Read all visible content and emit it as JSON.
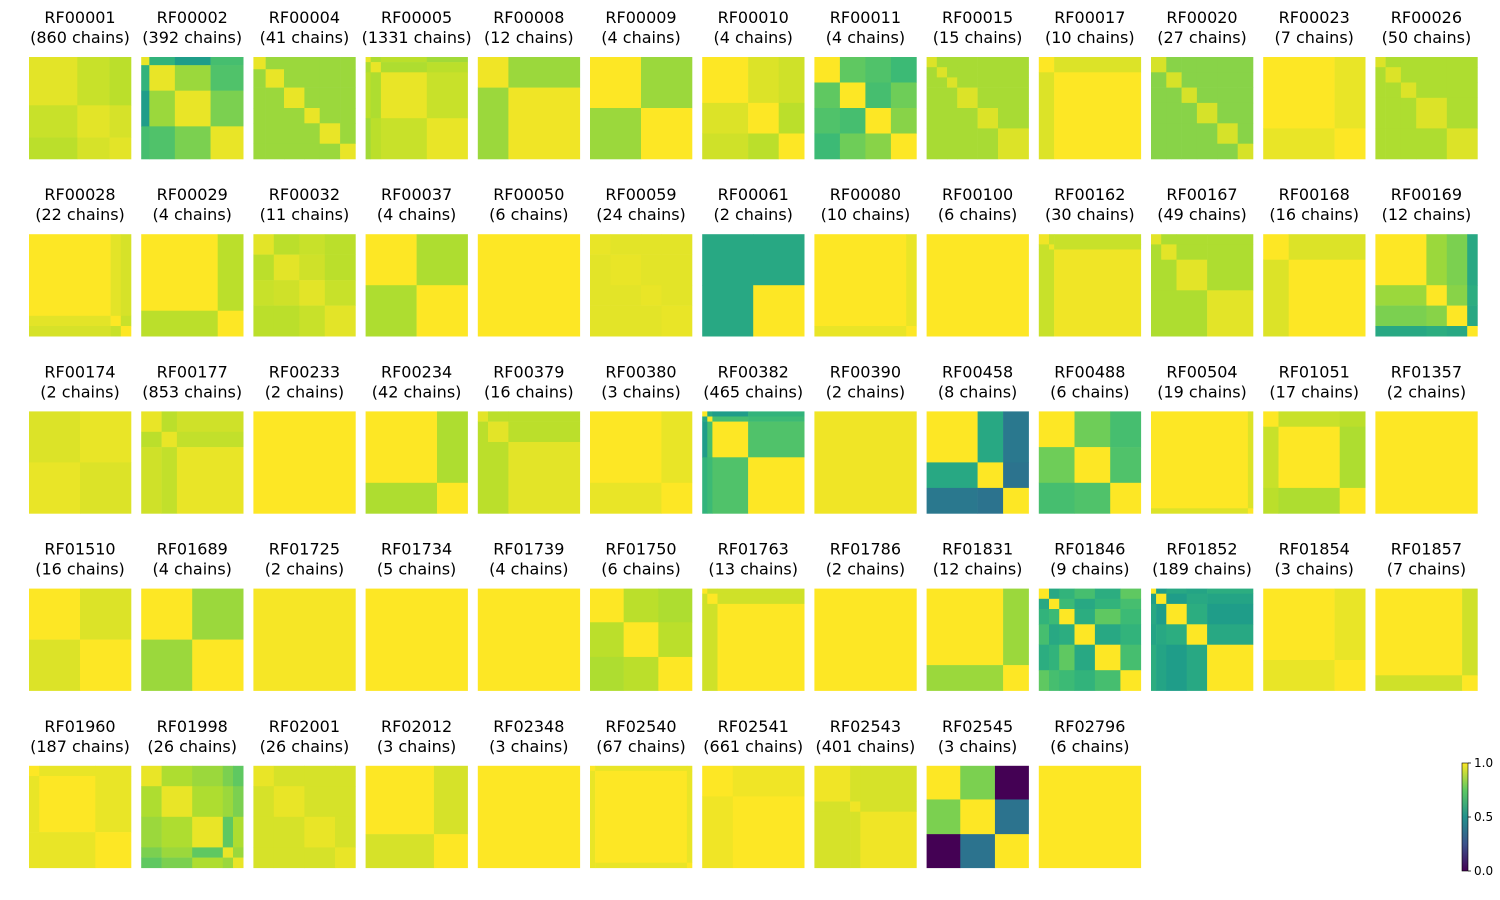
{
  "chart_data": {
    "type": "heatmap",
    "title": "",
    "colormap": "viridis",
    "colorbar": {
      "min": 0.0,
      "max": 1.0,
      "ticks": [
        0.0,
        0.5,
        1.0
      ],
      "tick_labels": [
        "0.0",
        "0.5",
        "1.0"
      ]
    },
    "panels": [
      {
        "family": "RF00001",
        "chains": "(860 chains)",
        "blocks": [
          0.45,
          0.3,
          0.2
        ],
        "off": [
          0.92,
          0.9,
          0.94
        ],
        "tint": 0.96
      },
      {
        "family": "RF00002",
        "chains": "(392 chains)",
        "blocks": [
          0.08,
          0.25,
          0.35,
          0.32
        ],
        "off": [
          0.65,
          0.55,
          0.7,
          0.85,
          0.72,
          0.8
        ],
        "tint": 0.97
      },
      {
        "family": "RF00004",
        "chains": "(41 chains)",
        "blocks": [
          0.12,
          0.18,
          0.2,
          0.15,
          0.2,
          0.15
        ],
        "off": [
          0.85
        ],
        "tint": 0.97
      },
      {
        "family": "RF00005",
        "chains": "(1331 chains)",
        "blocks": [
          0.05,
          0.1,
          0.45,
          0.4
        ],
        "off": [
          0.88,
          0.9,
          0.86,
          0.88,
          0.9,
          0.92
        ],
        "tint": 0.97
      },
      {
        "family": "RF00008",
        "chains": "(12 chains)",
        "blocks": [
          0.3,
          0.7
        ],
        "off": [
          0.85
        ],
        "tint": 0.98
      },
      {
        "family": "RF00009",
        "chains": "(4 chains)",
        "blocks": [
          0.5,
          0.5
        ],
        "off": [
          0.85
        ],
        "tint": 1.0
      },
      {
        "family": "RF00010",
        "chains": "(4 chains)",
        "blocks": [
          0.45,
          0.3,
          0.25
        ],
        "off": [
          0.95,
          0.93,
          0.9
        ],
        "tint": 1.0
      },
      {
        "family": "RF00011",
        "chains": "(4 chains)",
        "blocks": [
          0.25,
          0.25,
          0.25,
          0.25
        ],
        "off": [
          0.75,
          0.72,
          0.68,
          0.7,
          0.78,
          0.82
        ],
        "tint": 1.0
      },
      {
        "family": "RF00015",
        "chains": "(15 chains)",
        "blocks": [
          0.1,
          0.1,
          0.1,
          0.2,
          0.2,
          0.3
        ],
        "off": [
          0.87
        ],
        "tint": 0.95
      },
      {
        "family": "RF00017",
        "chains": "(10 chains)",
        "blocks": [
          0.15,
          0.85
        ],
        "off": [
          0.95
        ],
        "tint": 1.0
      },
      {
        "family": "RF00020",
        "chains": "(27 chains)",
        "blocks": [
          0.15,
          0.15,
          0.15,
          0.2,
          0.2,
          0.15
        ],
        "off": [
          0.82
        ],
        "tint": 0.94
      },
      {
        "family": "RF00023",
        "chains": "(7 chains)",
        "blocks": [
          0.7,
          0.3
        ],
        "off": [
          0.97
        ],
        "tint": 1.0
      },
      {
        "family": "RF00026",
        "chains": "(50 chains)",
        "blocks": [
          0.1,
          0.15,
          0.15,
          0.3,
          0.3
        ],
        "off": [
          0.88
        ],
        "tint": 0.95
      },
      {
        "family": "RF00028",
        "chains": "(22 chains)",
        "blocks": [
          0.8,
          0.1,
          0.1
        ],
        "off": [
          0.96,
          0.94,
          0.92
        ],
        "tint": 1.0
      },
      {
        "family": "RF00029",
        "chains": "(4 chains)",
        "blocks": [
          0.75,
          0.25
        ],
        "off": [
          0.9
        ],
        "tint": 1.0
      },
      {
        "family": "RF00032",
        "chains": "(11 chains)",
        "blocks": [
          0.2,
          0.25,
          0.25,
          0.3
        ],
        "off": [
          0.9,
          0.92,
          0.9,
          0.93,
          0.9,
          0.92
        ],
        "tint": 0.96
      },
      {
        "family": "RF00037",
        "chains": "(4 chains)",
        "blocks": [
          0.5,
          0.5
        ],
        "off": [
          0.88
        ],
        "tint": 1.0
      },
      {
        "family": "RF00050",
        "chains": "(6 chains)",
        "blocks": [
          1.0
        ],
        "off": [
          1.0
        ],
        "tint": 1.0
      },
      {
        "family": "RF00059",
        "chains": "(24 chains)",
        "blocks": [
          0.2,
          0.3,
          0.2,
          0.3
        ],
        "off": [
          0.96
        ],
        "tint": 0.97
      },
      {
        "family": "RF00061",
        "chains": "(2 chains)",
        "blocks": [
          0.5,
          0.5
        ],
        "off": [
          0.6
        ],
        "tint": 1.0,
        "first": 0.6
      },
      {
        "family": "RF00080",
        "chains": "(10 chains)",
        "blocks": [
          0.9,
          0.1
        ],
        "off": [
          0.97
        ],
        "tint": 1.0
      },
      {
        "family": "RF00100",
        "chains": "(6 chains)",
        "blocks": [
          1.0
        ],
        "off": [
          1.0
        ],
        "tint": 1.0
      },
      {
        "family": "RF00162",
        "chains": "(30 chains)",
        "blocks": [
          0.1,
          0.05,
          0.85
        ],
        "off": [
          0.92
        ],
        "tint": 0.98
      },
      {
        "family": "RF00167",
        "chains": "(49 chains)",
        "blocks": [
          0.1,
          0.15,
          0.3,
          0.45
        ],
        "off": [
          0.88
        ],
        "tint": 0.96
      },
      {
        "family": "RF00168",
        "chains": "(16 chains)",
        "blocks": [
          0.25,
          0.75
        ],
        "off": [
          0.95
        ],
        "tint": 1.0
      },
      {
        "family": "RF00169",
        "chains": "(12 chains)",
        "blocks": [
          0.5,
          0.2,
          0.2,
          0.1
        ],
        "off": [
          0.85,
          0.8,
          0.6,
          0.82,
          0.62,
          0.6
        ],
        "tint": 1.0
      },
      {
        "family": "RF00174",
        "chains": "(2 chains)",
        "blocks": [
          0.5,
          0.5
        ],
        "off": [
          0.97
        ],
        "tint": 0.95
      },
      {
        "family": "RF00177",
        "chains": "(853 chains)",
        "blocks": [
          0.2,
          0.15,
          0.65
        ],
        "off": [
          0.9,
          0.93,
          0.91
        ],
        "tint": 0.97
      },
      {
        "family": "RF00233",
        "chains": "(2 chains)",
        "blocks": [
          1.0
        ],
        "off": [
          1.0
        ],
        "tint": 1.0
      },
      {
        "family": "RF00234",
        "chains": "(42 chains)",
        "blocks": [
          0.7,
          0.3
        ],
        "off": [
          0.88
        ],
        "tint": 1.0
      },
      {
        "family": "RF00379",
        "chains": "(16 chains)",
        "blocks": [
          0.1,
          0.2,
          0.7
        ],
        "off": [
          0.9
        ],
        "tint": 0.96
      },
      {
        "family": "RF00380",
        "chains": "(3 chains)",
        "blocks": [
          0.7,
          0.3
        ],
        "off": [
          0.97
        ],
        "tint": 1.0
      },
      {
        "family": "RF00382",
        "chains": "(465 chains)",
        "blocks": [
          0.05,
          0.05,
          0.35,
          0.55
        ],
        "off": [
          0.6,
          0.55,
          0.65,
          0.7,
          0.68,
          0.72
        ],
        "tint": 1.0
      },
      {
        "family": "RF00390",
        "chains": "(2 chains)",
        "blocks": [
          1.0
        ],
        "off": [
          1.0
        ],
        "tint": 0.98
      },
      {
        "family": "RF00458",
        "chains": "(8 chains)",
        "blocks": [
          0.5,
          0.25,
          0.25
        ],
        "off": [
          0.6,
          0.4,
          0.38
        ],
        "tint": 1.0
      },
      {
        "family": "RF00488",
        "chains": "(6 chains)",
        "blocks": [
          0.35,
          0.35,
          0.3
        ],
        "off": [
          0.78,
          0.7,
          0.72
        ],
        "tint": 1.0
      },
      {
        "family": "RF00504",
        "chains": "(19 chains)",
        "blocks": [
          0.95,
          0.05
        ],
        "off": [
          0.95
        ],
        "tint": 1.0
      },
      {
        "family": "RF01051",
        "chains": "(17 chains)",
        "blocks": [
          0.15,
          0.6,
          0.25
        ],
        "off": [
          0.92,
          0.9,
          0.88
        ],
        "tint": 1.0
      },
      {
        "family": "RF01357",
        "chains": "(2 chains)",
        "blocks": [
          1.0
        ],
        "off": [
          1.0
        ],
        "tint": 1.0
      },
      {
        "family": "RF01510",
        "chains": "(16 chains)",
        "blocks": [
          0.5,
          0.5
        ],
        "off": [
          0.95
        ],
        "tint": 1.0
      },
      {
        "family": "RF01689",
        "chains": "(4 chains)",
        "blocks": [
          0.5,
          0.5
        ],
        "off": [
          0.85
        ],
        "tint": 1.0
      },
      {
        "family": "RF01725",
        "chains": "(2 chains)",
        "blocks": [
          1.0
        ],
        "off": [
          1.0
        ],
        "tint": 0.99
      },
      {
        "family": "RF01734",
        "chains": "(5 chains)",
        "blocks": [
          1.0
        ],
        "off": [
          1.0
        ],
        "tint": 1.0
      },
      {
        "family": "RF01739",
        "chains": "(4 chains)",
        "blocks": [
          1.0
        ],
        "off": [
          1.0
        ],
        "tint": 1.0
      },
      {
        "family": "RF01750",
        "chains": "(6 chains)",
        "blocks": [
          0.33,
          0.34,
          0.33
        ],
        "off": [
          0.9,
          0.88,
          0.9
        ],
        "tint": 1.0
      },
      {
        "family": "RF01763",
        "chains": "(13 chains)",
        "blocks": [
          0.05,
          0.1,
          0.85
        ],
        "off": [
          0.93
        ],
        "tint": 1.0
      },
      {
        "family": "RF01786",
        "chains": "(2 chains)",
        "blocks": [
          1.0
        ],
        "off": [
          1.0
        ],
        "tint": 1.0
      },
      {
        "family": "RF01831",
        "chains": "(12 chains)",
        "blocks": [
          0.75,
          0.25
        ],
        "off": [
          0.85
        ],
        "tint": 1.0
      },
      {
        "family": "RF01846",
        "chains": "(9 chains)",
        "blocks": [
          0.1,
          0.1,
          0.15,
          0.2,
          0.25,
          0.2
        ],
        "off": [
          0.6,
          0.65,
          0.7,
          0.62,
          0.75,
          0.68
        ],
        "tint": 1.0
      },
      {
        "family": "RF01852",
        "chains": "(189 chains)",
        "blocks": [
          0.05,
          0.1,
          0.2,
          0.2,
          0.45
        ],
        "off": [
          0.55,
          0.6,
          0.58,
          0.62
        ],
        "tint": 1.0
      },
      {
        "family": "RF01854",
        "chains": "(3 chains)",
        "blocks": [
          0.7,
          0.3
        ],
        "off": [
          0.97
        ],
        "tint": 1.0
      },
      {
        "family": "RF01857",
        "chains": "(7 chains)",
        "blocks": [
          0.85,
          0.15
        ],
        "off": [
          0.93
        ],
        "tint": 1.0
      },
      {
        "family": "RF01960",
        "chains": "(187 chains)",
        "blocks": [
          0.1,
          0.55,
          0.35
        ],
        "off": [
          0.97
        ],
        "tint": 1.0
      },
      {
        "family": "RF01998",
        "chains": "(26 chains)",
        "blocks": [
          0.2,
          0.3,
          0.3,
          0.1,
          0.1
        ],
        "off": [
          0.88,
          0.85,
          0.8,
          0.75
        ],
        "tint": 0.97
      },
      {
        "family": "RF02001",
        "chains": "(26 chains)",
        "blocks": [
          0.2,
          0.3,
          0.3,
          0.2
        ],
        "off": [
          0.94
        ],
        "tint": 0.97
      },
      {
        "family": "RF02012",
        "chains": "(3 chains)",
        "blocks": [
          0.67,
          0.33
        ],
        "off": [
          0.94
        ],
        "tint": 1.0
      },
      {
        "family": "RF02348",
        "chains": "(3 chains)",
        "blocks": [
          1.0
        ],
        "off": [
          1.0
        ],
        "tint": 1.0
      },
      {
        "family": "RF02540",
        "chains": "(67 chains)",
        "blocks": [
          0.05,
          0.9,
          0.05
        ],
        "off": [
          0.97
        ],
        "tint": 1.0
      },
      {
        "family": "RF02541",
        "chains": "(661 chains)",
        "blocks": [
          0.3,
          0.7
        ],
        "off": [
          0.98
        ],
        "tint": 1.0
      },
      {
        "family": "RF02543",
        "chains": "(401 chains)",
        "blocks": [
          0.35,
          0.1,
          0.55
        ],
        "off": [
          0.94
        ],
        "tint": 0.98
      },
      {
        "family": "RF02545",
        "chains": "(3 chains)",
        "blocks": [
          0.33,
          0.34,
          0.33
        ],
        "off": [
          0.8,
          0.0,
          0.38
        ],
        "tint": 1.0
      },
      {
        "family": "RF02796",
        "chains": "(6 chains)",
        "blocks": [
          1.0
        ],
        "off": [
          1.0
        ],
        "tint": 1.0
      }
    ]
  }
}
